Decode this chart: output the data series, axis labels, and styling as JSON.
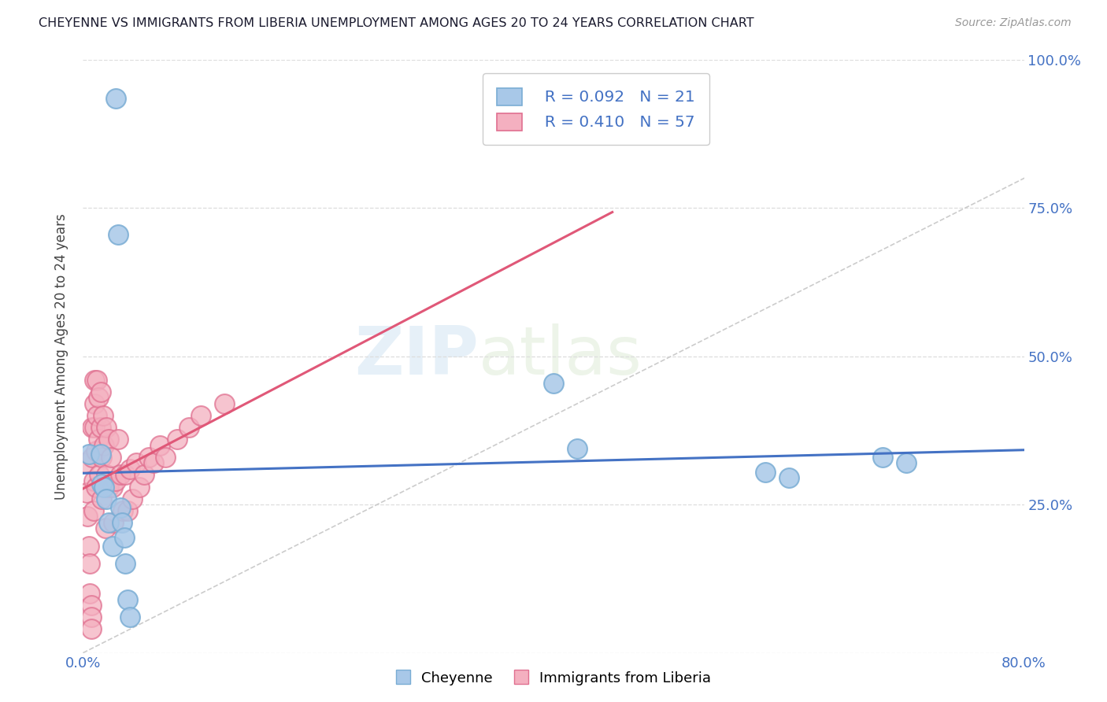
{
  "title": "CHEYENNE VS IMMIGRANTS FROM LIBERIA UNEMPLOYMENT AMONG AGES 20 TO 24 YEARS CORRELATION CHART",
  "source": "Source: ZipAtlas.com",
  "ylabel": "Unemployment Among Ages 20 to 24 years",
  "xlim": [
    0.0,
    0.8
  ],
  "ylim": [
    0.0,
    1.0
  ],
  "cheyenne_color": "#a8c8e8",
  "cheyenne_edge": "#7aadd4",
  "liberia_color": "#f4b0c0",
  "liberia_edge": "#e07090",
  "cheyenne_trend_color": "#4472c4",
  "liberia_trend_color": "#e05878",
  "diagonal_color": "#cccccc",
  "label_color": "#4472c4",
  "cheyenne_R": 0.092,
  "cheyenne_N": 21,
  "liberia_R": 0.41,
  "liberia_N": 57,
  "cheyenne_x": [
    0.005,
    0.028,
    0.03,
    0.015,
    0.016,
    0.018,
    0.02,
    0.022,
    0.025,
    0.032,
    0.033,
    0.035,
    0.036,
    0.038,
    0.04,
    0.4,
    0.42,
    0.58,
    0.6,
    0.68,
    0.7
  ],
  "cheyenne_y": [
    0.335,
    0.935,
    0.705,
    0.335,
    0.285,
    0.28,
    0.26,
    0.22,
    0.18,
    0.245,
    0.22,
    0.195,
    0.15,
    0.09,
    0.06,
    0.455,
    0.345,
    0.305,
    0.295,
    0.33,
    0.32
  ],
  "liberia_x": [
    0.002,
    0.003,
    0.004,
    0.005,
    0.006,
    0.006,
    0.007,
    0.007,
    0.007,
    0.008,
    0.008,
    0.009,
    0.009,
    0.01,
    0.01,
    0.01,
    0.011,
    0.011,
    0.012,
    0.012,
    0.013,
    0.013,
    0.014,
    0.015,
    0.015,
    0.016,
    0.016,
    0.017,
    0.018,
    0.018,
    0.019,
    0.02,
    0.02,
    0.022,
    0.022,
    0.024,
    0.025,
    0.026,
    0.028,
    0.03,
    0.032,
    0.034,
    0.036,
    0.038,
    0.04,
    0.042,
    0.045,
    0.048,
    0.052,
    0.056,
    0.06,
    0.065,
    0.07,
    0.08,
    0.09,
    0.1,
    0.12
  ],
  "liberia_y": [
    0.32,
    0.27,
    0.23,
    0.18,
    0.15,
    0.1,
    0.08,
    0.06,
    0.04,
    0.38,
    0.33,
    0.29,
    0.24,
    0.46,
    0.42,
    0.38,
    0.34,
    0.28,
    0.46,
    0.4,
    0.43,
    0.36,
    0.3,
    0.44,
    0.38,
    0.33,
    0.26,
    0.4,
    0.35,
    0.28,
    0.21,
    0.38,
    0.3,
    0.36,
    0.28,
    0.33,
    0.28,
    0.22,
    0.29,
    0.36,
    0.3,
    0.24,
    0.3,
    0.24,
    0.31,
    0.26,
    0.32,
    0.28,
    0.3,
    0.33,
    0.32,
    0.35,
    0.33,
    0.36,
    0.38,
    0.4,
    0.42
  ]
}
